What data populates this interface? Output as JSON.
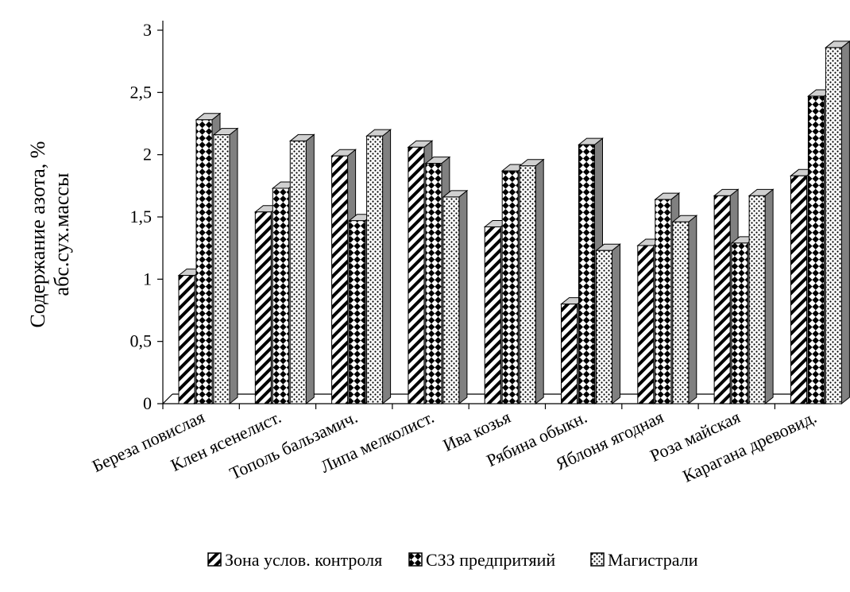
{
  "chart_data": {
    "type": "bar",
    "title": "",
    "ylabel": "Содержание азота, % абс.сух.массы",
    "ylabel_lines": [
      "Содержание азота, %",
      "абс.сух.массы"
    ],
    "xlabel": "",
    "ylim": [
      0,
      3
    ],
    "yticks": [
      0,
      0.5,
      1,
      1.5,
      2,
      2.5,
      3
    ],
    "ytick_labels": [
      "0",
      "0,5",
      "1",
      "1,5",
      "2",
      "2,5",
      "3"
    ],
    "grid": false,
    "legend_position": "bottom",
    "style": "3d-clustered-bar",
    "categories": [
      "Береза повислая",
      "Клен ясенелист.",
      "Тополь бальзамич.",
      "Липа мелколист.",
      "Ива козья",
      "Рябина обыкн.",
      "Яблоня ягодная",
      "Роза майская",
      "Карагана древовид."
    ],
    "series": [
      {
        "name": "Зона услов. контроля",
        "pattern": "diagonal-hatch",
        "values": [
          1.03,
          1.54,
          1.99,
          2.06,
          1.42,
          0.8,
          1.27,
          1.67,
          1.83
        ]
      },
      {
        "name": "СЗЗ предпритяий",
        "pattern": "diamond-checker",
        "values": [
          2.28,
          1.73,
          1.47,
          1.93,
          1.87,
          2.08,
          1.64,
          1.29,
          2.47
        ]
      },
      {
        "name": "Магистрали",
        "pattern": "dots",
        "values": [
          2.16,
          2.11,
          2.15,
          1.66,
          1.91,
          1.23,
          1.46,
          1.67,
          2.86
        ]
      }
    ]
  }
}
